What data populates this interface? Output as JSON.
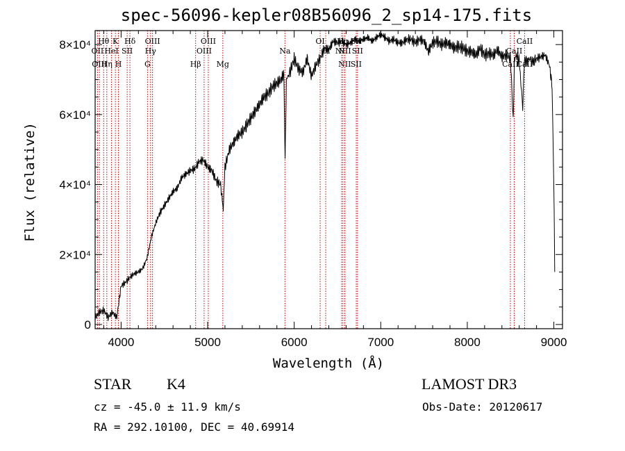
{
  "chart_data": {
    "type": "line",
    "title": "spec-56096-kepler08B56096_2_sp14-175.fits",
    "xlabel": "Wavelength (Å)",
    "ylabel": "Flux (relative)",
    "xlim": [
      3700,
      9100
    ],
    "ylim": [
      -1200,
      84000
    ],
    "xticks": [
      4000,
      5000,
      6000,
      7000,
      8000,
      9000
    ],
    "yticks": [
      0,
      20000,
      40000,
      60000,
      80000
    ],
    "ytick_labels": [
      "0",
      "2×10⁴",
      "4×10⁴",
      "6×10⁴",
      "8×10⁴"
    ],
    "series": [
      {
        "name": "flux",
        "x": [
          3700,
          3750,
          3800,
          3850,
          3900,
          3950,
          4000,
          4050,
          4100,
          4150,
          4200,
          4250,
          4300,
          4350,
          4400,
          4450,
          4500,
          4550,
          4600,
          4650,
          4700,
          4750,
          4800,
          4850,
          4900,
          4950,
          5000,
          5050,
          5100,
          5150,
          5180,
          5200,
          5250,
          5300,
          5350,
          5400,
          5450,
          5500,
          5550,
          5600,
          5650,
          5700,
          5750,
          5800,
          5850,
          5880,
          5895,
          5910,
          5950,
          6000,
          6050,
          6100,
          6150,
          6200,
          6250,
          6300,
          6350,
          6400,
          6450,
          6500,
          6550,
          6600,
          6650,
          6700,
          6750,
          6800,
          6850,
          6900,
          6950,
          7000,
          7050,
          7100,
          7150,
          7200,
          7250,
          7300,
          7350,
          7400,
          7450,
          7500,
          7550,
          7600,
          7650,
          7700,
          7750,
          7800,
          7850,
          7900,
          7950,
          8000,
          8050,
          8100,
          8150,
          8200,
          8250,
          8300,
          8350,
          8400,
          8450,
          8500,
          8530,
          8545,
          8560,
          8600,
          8640,
          8660,
          8680,
          8720,
          8760,
          8800,
          8850,
          8900,
          8950,
          8980,
          9000,
          9010
        ],
        "y": [
          2000,
          3500,
          4000,
          2000,
          3500,
          2000,
          11000,
          12000,
          13500,
          14500,
          15000,
          16000,
          19000,
          25000,
          29000,
          32000,
          34000,
          36000,
          38000,
          39000,
          42000,
          43000,
          44000,
          44500,
          46500,
          47000,
          45000,
          44000,
          41000,
          40000,
          33000,
          45000,
          50000,
          52000,
          54000,
          55000,
          57000,
          59000,
          61000,
          63000,
          65000,
          66000,
          68000,
          69000,
          70000,
          72000,
          47000,
          70000,
          72000,
          76000,
          73000,
          72000,
          76000,
          71000,
          74000,
          76000,
          79000,
          78500,
          81000,
          80500,
          81000,
          80000,
          80500,
          81500,
          81000,
          81500,
          82000,
          81000,
          82000,
          83000,
          82000,
          81000,
          81500,
          80500,
          80500,
          81500,
          81500,
          80500,
          81500,
          81000,
          78000,
          80500,
          81000,
          80000,
          80500,
          80000,
          79000,
          79500,
          79000,
          78000,
          78000,
          77000,
          79000,
          77000,
          77500,
          77000,
          78500,
          76500,
          77000,
          76000,
          58000,
          75500,
          77000,
          75500,
          62000,
          76000,
          75000,
          76000,
          75000,
          76000,
          76500,
          77000,
          74000,
          68000,
          40000,
          15000
        ]
      }
    ],
    "spectral_lines": [
      {
        "label": "Hθ",
        "wl": 3798,
        "row": 1
      },
      {
        "label": "OII",
        "wl": 3727,
        "row": 2
      },
      {
        "label": "OIII",
        "wl": 3750,
        "row": 3
      },
      {
        "label": "Hη",
        "wl": 3835,
        "row": 3
      },
      {
        "label": "K",
        "wl": 3934,
        "row": 1
      },
      {
        "label": "HeI",
        "wl": 3889,
        "row": 2
      },
      {
        "label": "H",
        "wl": 3969,
        "row": 3
      },
      {
        "label": "SII",
        "wl": 4070,
        "row": 2
      },
      {
        "label": "Hδ",
        "wl": 4102,
        "row": 1
      },
      {
        "label": "OIII",
        "wl": 4363,
        "row": 1
      },
      {
        "label": "Hγ",
        "wl": 4340,
        "row": 2
      },
      {
        "label": "G",
        "wl": 4305,
        "row": 3
      },
      {
        "label": "Hβ",
        "wl": 4861,
        "row": 3
      },
      {
        "label": "OIII",
        "wl": 5007,
        "row": 1
      },
      {
        "label": "OIII",
        "wl": 4959,
        "row": 2
      },
      {
        "label": "Mg",
        "wl": 5175,
        "row": 3
      },
      {
        "label": "Na",
        "wl": 5893,
        "row": 2
      },
      {
        "label": "OI",
        "wl": 6300,
        "row": 1
      },
      {
        "label": "OI",
        "wl": 6364,
        "row": 2
      },
      {
        "label": "Hα",
        "wl": 6563,
        "row": 1
      },
      {
        "label": "SII",
        "wl": 6717,
        "row": 1
      },
      {
        "label": "NII",
        "wl": 6548,
        "row": 2
      },
      {
        "label": "NII",
        "wl": 6584,
        "row": 2
      },
      {
        "label": "SII",
        "wl": 6731,
        "row": 2
      },
      {
        "label": "NII",
        "wl": 6583,
        "row": 3
      },
      {
        "label": "SII",
        "wl": 6716,
        "row": 3
      },
      {
        "label": "CaII",
        "wl": 8662,
        "row": 1
      },
      {
        "label": "CaII",
        "wl": 8542,
        "row": 2
      },
      {
        "label": "CaII",
        "wl": 8498,
        "row": 3
      },
      {
        "label": "CaII",
        "wl": 8662,
        "row": 3
      }
    ]
  },
  "info": {
    "object_class": "STAR",
    "subclass": "K4",
    "survey": "LAMOST DR3",
    "redshift": "cz = -45.0 ± 11.9 km/s",
    "obs_date": "Obs-Date: 20120617",
    "coords": "RA = 292.10100, DEC =  40.69914"
  }
}
